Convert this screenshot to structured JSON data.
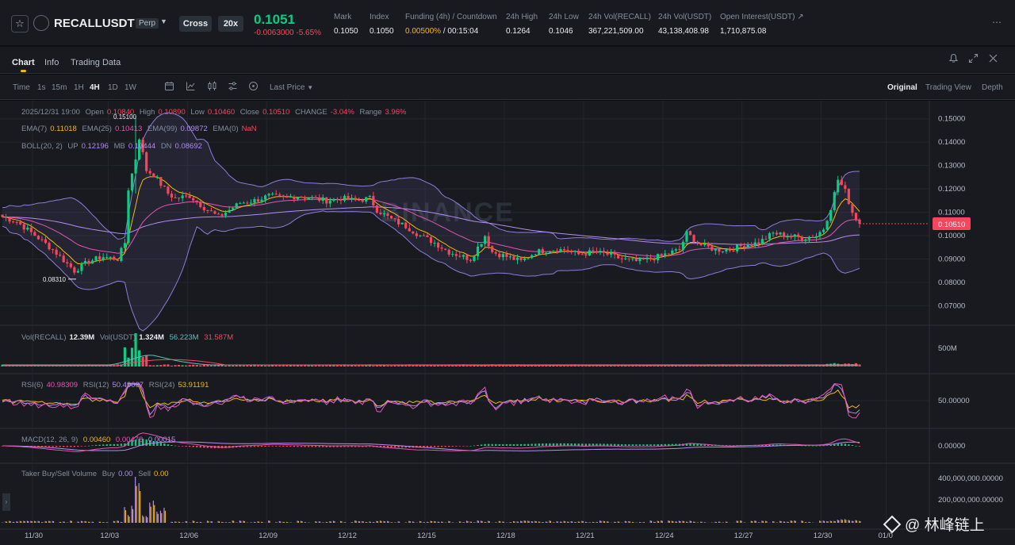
{
  "header": {
    "symbol": "RECALLUSDT",
    "contract_type": "Perp",
    "margin_mode": "Cross",
    "leverage": "20x",
    "last_price": "0.1051",
    "price_change": "-0.0063000 -5.65%",
    "stats": [
      {
        "label": "Mark",
        "value": "0.1050"
      },
      {
        "label": "Index",
        "value": "0.1050"
      },
      {
        "label": "Funding (4h) / Countdown",
        "value": "0.00500%",
        "value2": " / 00:15:04"
      },
      {
        "label": "24h High",
        "value": "0.1264"
      },
      {
        "label": "24h Low",
        "value": "0.1046"
      },
      {
        "label": "24h Vol(RECALL)",
        "value": "367,221,509.00"
      },
      {
        "label": "24h Vol(USDT)",
        "value": "43,138,408.98"
      },
      {
        "label": "Open Interest(USDT)",
        "value": "1,710,875.08"
      }
    ],
    "more_icon": "more-dots-icon"
  },
  "tabs": [
    "Chart",
    "Info",
    "Trading Data"
  ],
  "top_icons": [
    "bell-icon",
    "expand-icon",
    "close-icon"
  ],
  "toolbar": {
    "time_label": "Time",
    "intervals": [
      "1s",
      "15m",
      "1H",
      "4H",
      "1D",
      "1W"
    ],
    "active_interval": "4H",
    "tools": [
      "calendar-icon",
      "indicator-icon",
      "candle-type-icon",
      "settings-icon",
      "clock-icon"
    ],
    "price_type": "Last Price",
    "views": [
      "Original",
      "Trading View",
      "Depth"
    ],
    "active_view": "Original"
  },
  "legend": {
    "ohlc": {
      "date": "2025/12/31 19:00",
      "open_label": "Open",
      "open": "0.10840",
      "high_label": "High",
      "high": "0.10890",
      "low_label": "Low",
      "low": "0.10460",
      "close_label": "Close",
      "close": "0.10510",
      "change_label": "CHANGE",
      "change": "-3.04%",
      "range_label": "Range",
      "range": "3.96%"
    },
    "ema": {
      "l7": "EMA(7)",
      "v7": "0.11018",
      "l25": "EMA(25)",
      "v25": "0.10413",
      "l99": "EMA(99)",
      "v99": "0.09872",
      "l0": "EMA(0)",
      "v0": "NaN"
    },
    "boll": {
      "label": "BOLL(20, 2)",
      "up_label": "UP",
      "up": "0.12196",
      "mb_label": "MB",
      "mb": "0.10444",
      "dn_label": "DN",
      "dn": "0.08692"
    },
    "vol": {
      "l1": "Vol(RECALL)",
      "v1": "12.39M",
      "l2": "Vol(USDT)",
      "v2": "1.324M",
      "v3": "56.223M",
      "v4": "31.587M"
    },
    "rsi": {
      "l6": "RSI(6)",
      "v6": "40.98309",
      "l12": "RSI(12)",
      "v12": "50.49007",
      "l24": "RSI(24)",
      "v24": "53.91191"
    },
    "macd": {
      "label": "MACD(12, 26, 9)",
      "v1": "0.00460",
      "v2": "0.00478",
      "v3": "0.00015"
    },
    "taker": {
      "label": "Taker Buy/Sell Volume",
      "buy_label": "Buy",
      "buy": "0.00",
      "sell_label": "Sell",
      "sell": "0.00"
    }
  },
  "annotations": {
    "high_marker": "0.15100",
    "low_marker": "0.08310",
    "current_price_tag": "0.10510"
  },
  "chart_data": {
    "type": "candlestick",
    "interval": "4H",
    "x_ticks": [
      "11/30",
      "12/03",
      "12/06",
      "12/09",
      "12/12",
      "12/15",
      "12/18",
      "12/21",
      "12/24",
      "12/27",
      "12/30",
      "01/0"
    ],
    "price_axis_ticks": [
      "0.15000",
      "0.14000",
      "0.13000",
      "0.12000",
      "0.11000",
      "0.10000",
      "0.09000",
      "0.08000",
      "0.07000"
    ],
    "price_range": [
      0.062,
      0.155
    ],
    "volume_axis_ticks": [
      "500M"
    ],
    "rsi_axis_ticks": [
      "50.00000"
    ],
    "macd_axis_ticks": [
      "0.00000"
    ],
    "taker_axis_ticks": [
      "400,000,000.00000",
      "200,000,000.00000"
    ],
    "price_anchors": [
      [
        0,
        0.108
      ],
      [
        4,
        0.106
      ],
      [
        10,
        0.099
      ],
      [
        14,
        0.094
      ],
      [
        18,
        0.088
      ],
      [
        20,
        0.085
      ],
      [
        24,
        0.089
      ],
      [
        28,
        0.091
      ],
      [
        32,
        0.09
      ],
      [
        34,
        0.097
      ],
      [
        35,
        0.12
      ],
      [
        37,
        0.133
      ],
      [
        38,
        0.142
      ],
      [
        40,
        0.128
      ],
      [
        42,
        0.126
      ],
      [
        44,
        0.122
      ],
      [
        46,
        0.118
      ],
      [
        48,
        0.116
      ],
      [
        52,
        0.117
      ],
      [
        56,
        0.112
      ],
      [
        58,
        0.11
      ],
      [
        60,
        0.108
      ],
      [
        62,
        0.11
      ],
      [
        64,
        0.112
      ],
      [
        66,
        0.114
      ],
      [
        70,
        0.115
      ],
      [
        74,
        0.117
      ],
      [
        78,
        0.116
      ],
      [
        82,
        0.117
      ],
      [
        86,
        0.116
      ],
      [
        90,
        0.115
      ],
      [
        94,
        0.116
      ],
      [
        98,
        0.115
      ],
      [
        102,
        0.116
      ],
      [
        104,
        0.111
      ],
      [
        108,
        0.107
      ],
      [
        112,
        0.104
      ],
      [
        116,
        0.1
      ],
      [
        120,
        0.097
      ],
      [
        124,
        0.093
      ],
      [
        128,
        0.091
      ],
      [
        130,
        0.09
      ],
      [
        134,
        0.1
      ],
      [
        136,
        0.093
      ],
      [
        140,
        0.091
      ],
      [
        144,
        0.089
      ],
      [
        148,
        0.093
      ],
      [
        152,
        0.094
      ],
      [
        156,
        0.094
      ],
      [
        160,
        0.092
      ],
      [
        164,
        0.093
      ],
      [
        168,
        0.092
      ],
      [
        172,
        0.09
      ],
      [
        176,
        0.089
      ],
      [
        180,
        0.09
      ],
      [
        184,
        0.092
      ],
      [
        188,
        0.094
      ],
      [
        190,
        0.101
      ],
      [
        194,
        0.096
      ],
      [
        198,
        0.094
      ],
      [
        202,
        0.094
      ],
      [
        206,
        0.096
      ],
      [
        210,
        0.097
      ],
      [
        214,
        0.101
      ],
      [
        218,
        0.1
      ],
      [
        222,
        0.099
      ],
      [
        226,
        0.1
      ],
      [
        228,
        0.103
      ],
      [
        230,
        0.112
      ],
      [
        232,
        0.124
      ],
      [
        234,
        0.119
      ],
      [
        236,
        0.11
      ],
      [
        238,
        0.1051
      ]
    ],
    "candle_count": 239
  },
  "colors": {
    "up": "#0ecb81",
    "down": "#f6465d",
    "ema7": "#f0b90b",
    "ema25": "#e455b4",
    "ema99": "#b48cf2",
    "boll": "#8f7bd8",
    "grid": "#22262d",
    "axis_text": "#b7bdc6",
    "watermark": "#2b3139"
  },
  "watermark": {
    "text": "BINANCE"
  },
  "social_watermark": {
    "text": "@ 林峰链上"
  }
}
